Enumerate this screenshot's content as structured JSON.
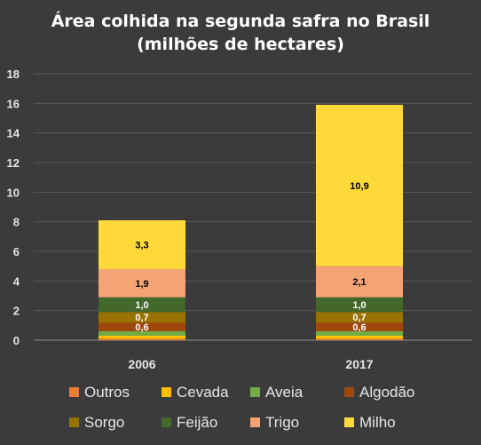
{
  "chart_data": {
    "type": "bar",
    "stacked": true,
    "title": [
      "Área colhida na segunda safra no Brasil",
      "(milhões de hectares)"
    ],
    "xlabel": "",
    "ylabel": "",
    "ylim": [
      0,
      18
    ],
    "yticks": [
      0,
      2,
      4,
      6,
      8,
      10,
      12,
      14,
      16,
      18
    ],
    "grid": true,
    "legend_position": "bottom",
    "categories": [
      "2006",
      "2017"
    ],
    "series": [
      {
        "name": "Outros",
        "color": "#ed7d31",
        "values": [
          0.1,
          0.1
        ],
        "labels": [
          "",
          ""
        ]
      },
      {
        "name": "Cevada",
        "color": "#ffc000",
        "values": [
          0.2,
          0.2
        ],
        "labels": [
          "",
          ""
        ]
      },
      {
        "name": "Aveia",
        "color": "#70ad47",
        "values": [
          0.3,
          0.3
        ],
        "labels": [
          "",
          ""
        ]
      },
      {
        "name": "Algodão",
        "color": "#9e480e",
        "values": [
          0.6,
          0.6
        ],
        "labels": [
          "0,6",
          "0,6"
        ],
        "label_color": "#ffffff"
      },
      {
        "name": "Sorgo",
        "color": "#997300",
        "values": [
          0.7,
          0.7
        ],
        "labels": [
          "0,7",
          "0,7"
        ],
        "label_color": "#ffffff"
      },
      {
        "name": "Feijão",
        "color": "#43682b",
        "values": [
          1.0,
          1.0
        ],
        "labels": [
          "1,0",
          "1,0"
        ],
        "label_color": "#ffffff"
      },
      {
        "name": "Trigo",
        "color": "#f4a474",
        "values": [
          1.9,
          2.1
        ],
        "labels": [
          "1,9",
          "2,1"
        ],
        "label_color": "#000000"
      },
      {
        "name": "Milho",
        "color": "#ffd939",
        "values": [
          3.3,
          10.9
        ],
        "labels": [
          "3,3",
          "10,9"
        ],
        "label_color": "#000000"
      }
    ]
  }
}
